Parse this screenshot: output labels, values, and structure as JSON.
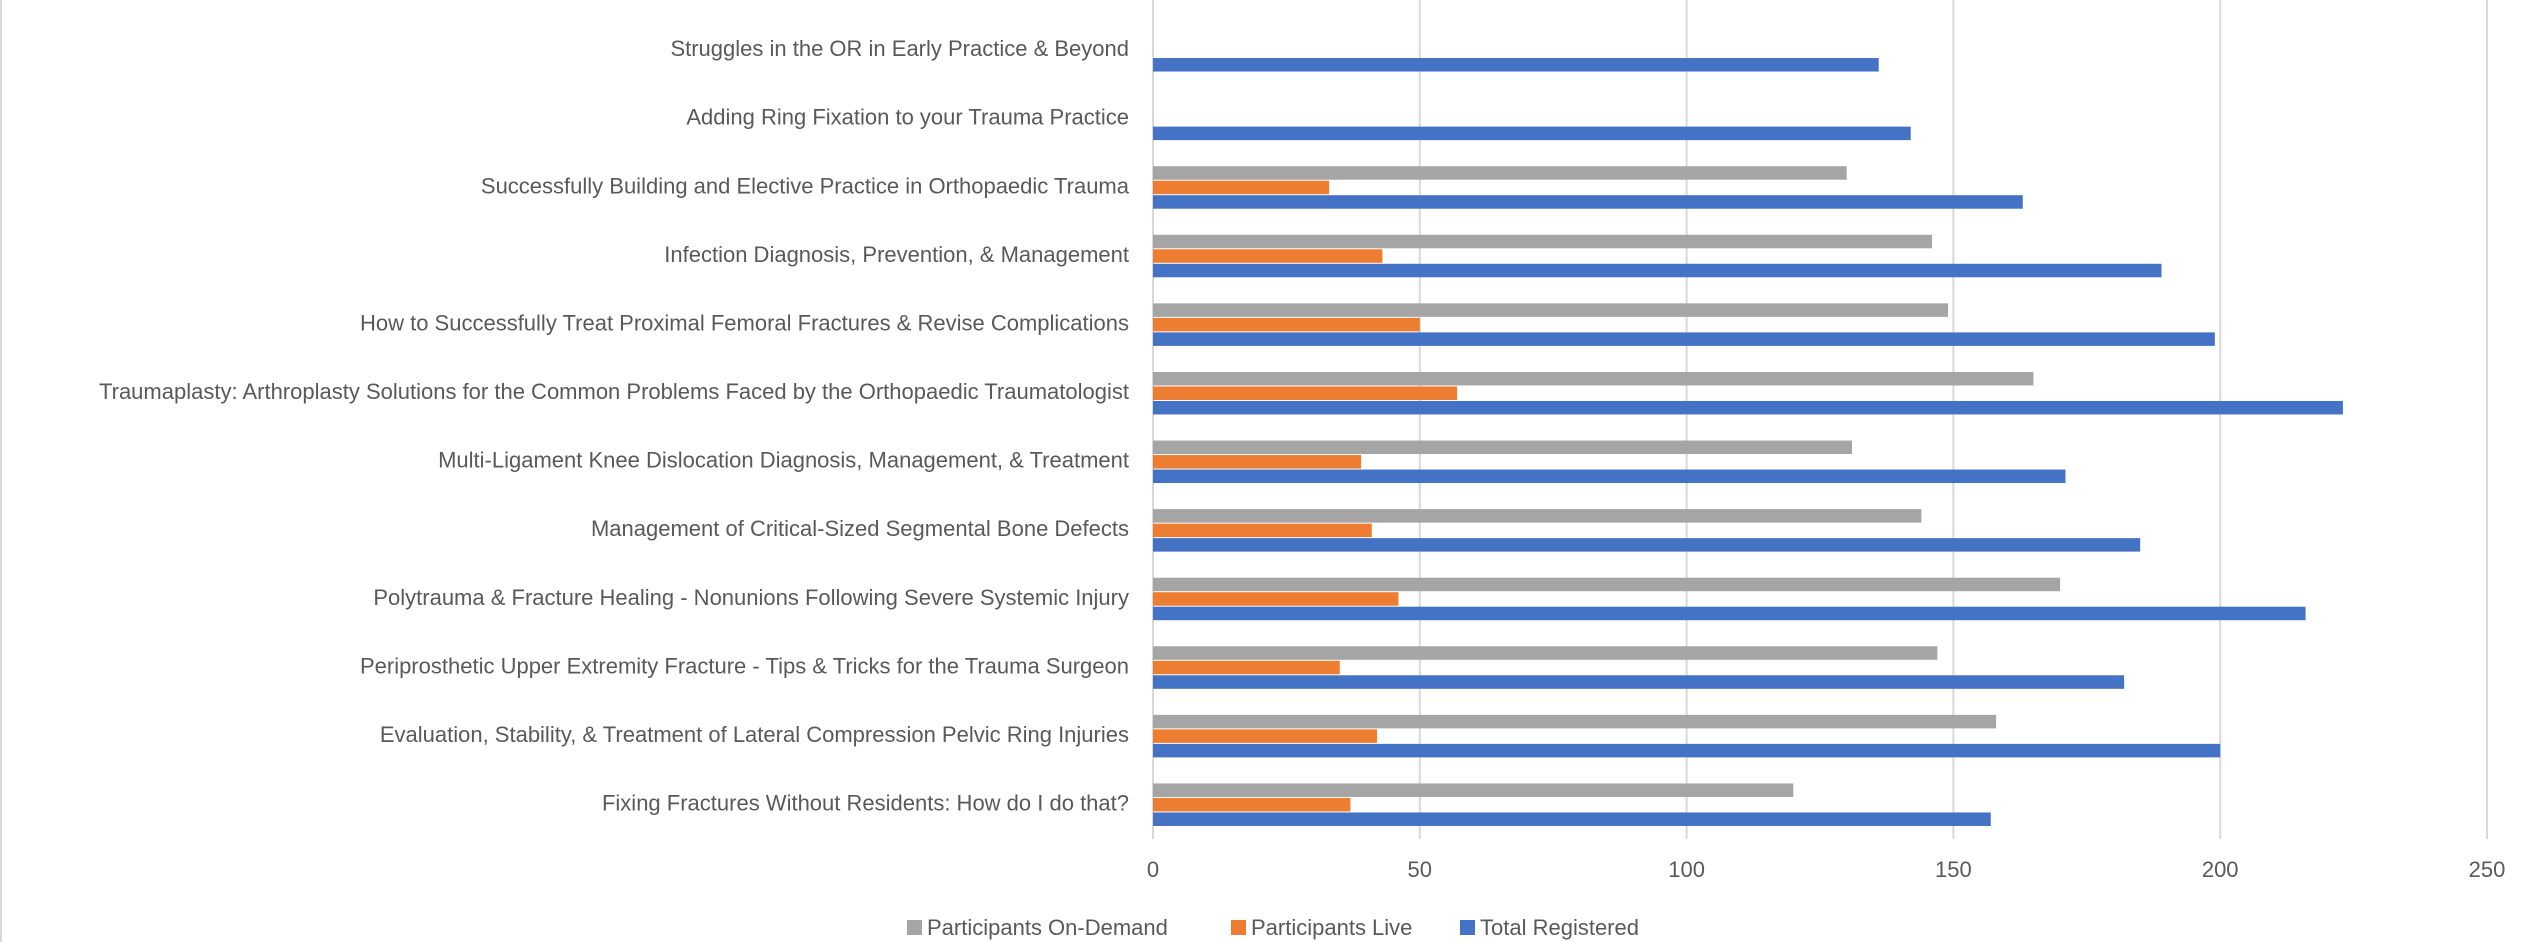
{
  "chart_data": {
    "type": "bar",
    "orientation": "horizontal",
    "categories": [
      "Struggles in the OR in Early Practice & Beyond",
      "Adding Ring Fixation to your Trauma Practice",
      "Successfully  Building and Elective Practice in Orthopaedic Trauma",
      "Infection Diagnosis, Prevention, & Management",
      "How to Successfully Treat Proximal Femoral Fractures & Revise Complications",
      "Traumaplasty: Arthroplasty Solutions for the Common Problems Faced by the Orthopaedic Traumatologist",
      "Multi-Ligament Knee Dislocation Diagnosis, Management, & Treatment",
      "Management of Critical-Sized Segmental Bone Defects",
      "Polytrauma & Fracture Healing - Nonunions Following Severe Systemic Injury",
      "Periprosthetic Upper Extremity Fracture - Tips & Tricks for the Trauma Surgeon",
      "Evaluation, Stability, & Treatment of Lateral Compression Pelvic Ring Injuries",
      "Fixing Fractures Without Residents: How do I do that?"
    ],
    "series": [
      {
        "name": "Participants On-Demand",
        "color": "#a5a5a5",
        "values": [
          null,
          null,
          130,
          146,
          149,
          165,
          131,
          144,
          170,
          147,
          158,
          120
        ]
      },
      {
        "name": "Participants Live",
        "color": "#ed7d31",
        "values": [
          null,
          null,
          33,
          43,
          50,
          57,
          39,
          41,
          46,
          35,
          42,
          37
        ]
      },
      {
        "name": "Total Registered",
        "color": "#4472c4",
        "values": [
          136,
          142,
          163,
          189,
          199,
          223,
          171,
          185,
          216,
          182,
          200,
          157
        ]
      }
    ],
    "xlim": [
      0,
      250
    ],
    "xticks": [
      0,
      50,
      100,
      150,
      200,
      250
    ],
    "grid": true,
    "legend": "bottom"
  }
}
